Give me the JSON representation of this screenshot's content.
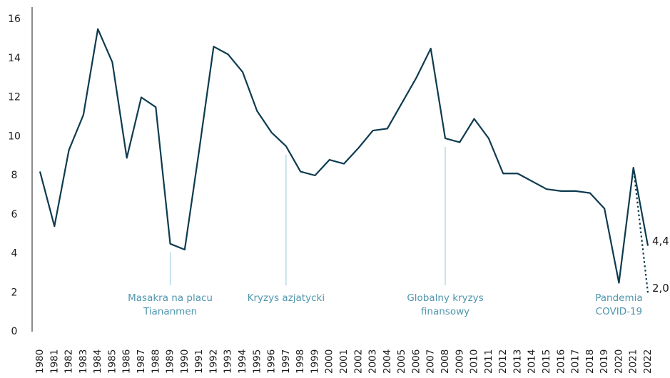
{
  "chart_data": {
    "type": "line",
    "categories": [
      "1980",
      "1981",
      "1982",
      "1983",
      "1984",
      "1985",
      "1986",
      "1987",
      "1988",
      "1989",
      "1990",
      "1991",
      "1992",
      "1993",
      "1994",
      "1995",
      "1996",
      "1997",
      "1998",
      "1999",
      "2000",
      "2001",
      "2002",
      "2003",
      "2004",
      "2005",
      "2006",
      "2007",
      "2008",
      "2009",
      "2010",
      "2011",
      "2012",
      "2013",
      "2014",
      "2015",
      "2016",
      "2017",
      "2018",
      "2019",
      "2020",
      "2021",
      "2022"
    ],
    "series": [
      {
        "color": "#0d3b4f",
        "dash": false,
        "values": [
          8.2,
          5.4,
          9.3,
          11.1,
          15.5,
          13.8,
          8.9,
          12.0,
          11.5,
          4.5,
          4.2,
          9.3,
          14.6,
          14.2,
          13.3,
          11.3,
          10.2,
          9.5,
          8.2,
          8.0,
          8.8,
          8.6,
          9.4,
          10.3,
          10.4,
          11.7,
          13.0,
          14.5,
          9.9,
          9.7,
          10.9,
          9.9,
          8.1,
          8.1,
          7.7,
          7.3,
          7.2,
          7.2,
          7.1,
          6.3,
          2.5,
          8.4,
          4.4
        ],
        "value_labels": [
          null,
          null,
          null,
          null,
          null,
          null,
          null,
          null,
          null,
          null,
          null,
          null,
          null,
          null,
          null,
          null,
          null,
          null,
          null,
          null,
          null,
          null,
          null,
          null,
          null,
          null,
          null,
          null,
          null,
          null,
          null,
          null,
          null,
          null,
          null,
          null,
          null,
          null,
          null,
          null,
          null,
          null,
          "4,4"
        ]
      },
      {
        "color": "#0d3b4f",
        "dash": true,
        "values": [
          null,
          null,
          null,
          null,
          null,
          null,
          null,
          null,
          null,
          null,
          null,
          null,
          null,
          null,
          null,
          null,
          null,
          null,
          null,
          null,
          null,
          null,
          null,
          null,
          null,
          null,
          null,
          null,
          null,
          null,
          null,
          null,
          null,
          null,
          null,
          null,
          null,
          null,
          null,
          null,
          null,
          8.4,
          2.0
        ],
        "value_labels": [
          null,
          null,
          null,
          null,
          null,
          null,
          null,
          null,
          null,
          null,
          null,
          null,
          null,
          null,
          null,
          null,
          null,
          null,
          null,
          null,
          null,
          null,
          null,
          null,
          null,
          null,
          null,
          null,
          null,
          null,
          null,
          null,
          null,
          null,
          null,
          null,
          null,
          null,
          null,
          null,
          null,
          null,
          "2,0"
        ]
      }
    ],
    "ylim": [
      0,
      16
    ],
    "yticks": [
      0,
      2,
      4,
      6,
      8,
      10,
      12,
      14,
      16
    ],
    "annotations": [
      {
        "x": "1989",
        "line": true,
        "text": [
          "Masakra na placu",
          "Tiananmen"
        ]
      },
      {
        "x": "1997",
        "line": true,
        "text": [
          "Kryzys azjatycki"
        ]
      },
      {
        "x": "2008",
        "line": true,
        "text": [
          "Globalny kryzys",
          "finansowy"
        ]
      },
      {
        "x": "2020",
        "line": false,
        "text": [
          "Pandemia",
          "COVID-19"
        ]
      }
    ]
  }
}
